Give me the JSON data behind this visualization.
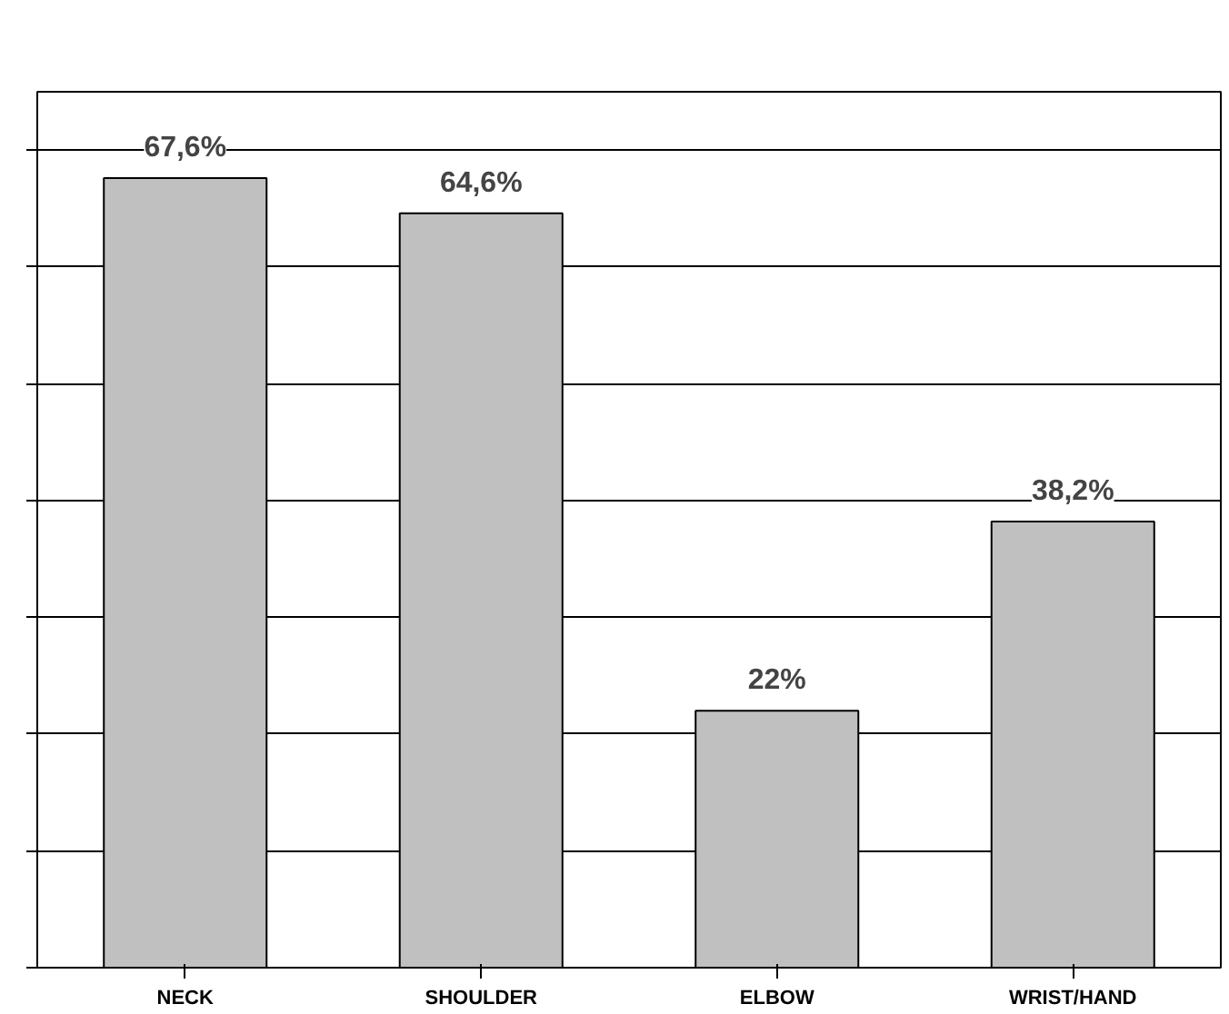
{
  "chart_data": {
    "type": "bar",
    "categories": [
      "NECK",
      "SHOULDER",
      "ELBOW",
      "WRIST/HAND"
    ],
    "values": [
      67.6,
      64.6,
      22,
      38.2
    ],
    "value_labels": [
      "67,6%",
      "64,6%",
      "22%",
      "38,2%"
    ],
    "color": "#c0c0c0",
    "ylim": [
      0,
      75
    ],
    "yticks": [
      {
        "value": 0,
        "label": null
      },
      {
        "value": 10,
        "label": null
      },
      {
        "value": 20,
        "label": null
      },
      {
        "value": 30,
        "label": null
      },
      {
        "value": 40,
        "label": null
      },
      {
        "value": 50,
        "label": null
      },
      {
        "value": 60,
        "label": null
      },
      {
        "value": 70,
        "label": null
      }
    ],
    "grid": "y",
    "tick_labels": "x"
  }
}
